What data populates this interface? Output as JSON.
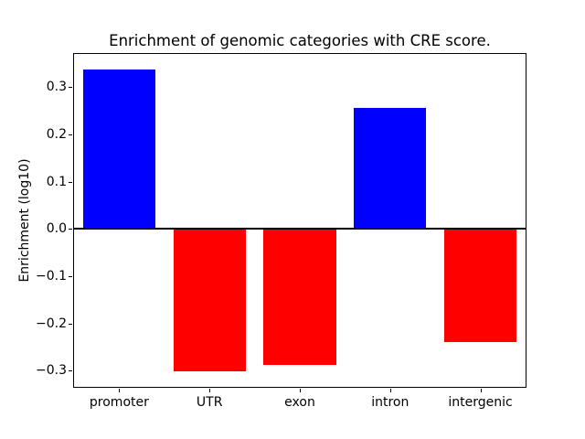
{
  "chart_data": {
    "type": "bar",
    "title": "Enrichment of genomic categories with CRE score.",
    "xlabel": "",
    "ylabel": "Enrichment (log10)",
    "categories": [
      "promoter",
      "UTR",
      "exon",
      "intron",
      "intergenic"
    ],
    "values": [
      0.338,
      -0.302,
      -0.288,
      0.256,
      -0.239
    ],
    "bar_colors": [
      "#0000ff",
      "#ff0000",
      "#ff0000",
      "#0000ff",
      "#ff0000"
    ],
    "positive_color": "#0000ff",
    "negative_color": "#ff0000",
    "ylim": [
      -0.334,
      0.37
    ],
    "yticks": [
      0.3,
      0.2,
      0.1,
      0.0,
      -0.1,
      -0.2,
      -0.3
    ],
    "ytick_labels": [
      "0.3",
      "0.2",
      "0.1",
      "0.0",
      "−0.1",
      "−0.2",
      "−0.3"
    ],
    "zero_line": true,
    "grid": false,
    "legend": null,
    "axis_color": "#000000",
    "background_color": "#ffffff"
  }
}
